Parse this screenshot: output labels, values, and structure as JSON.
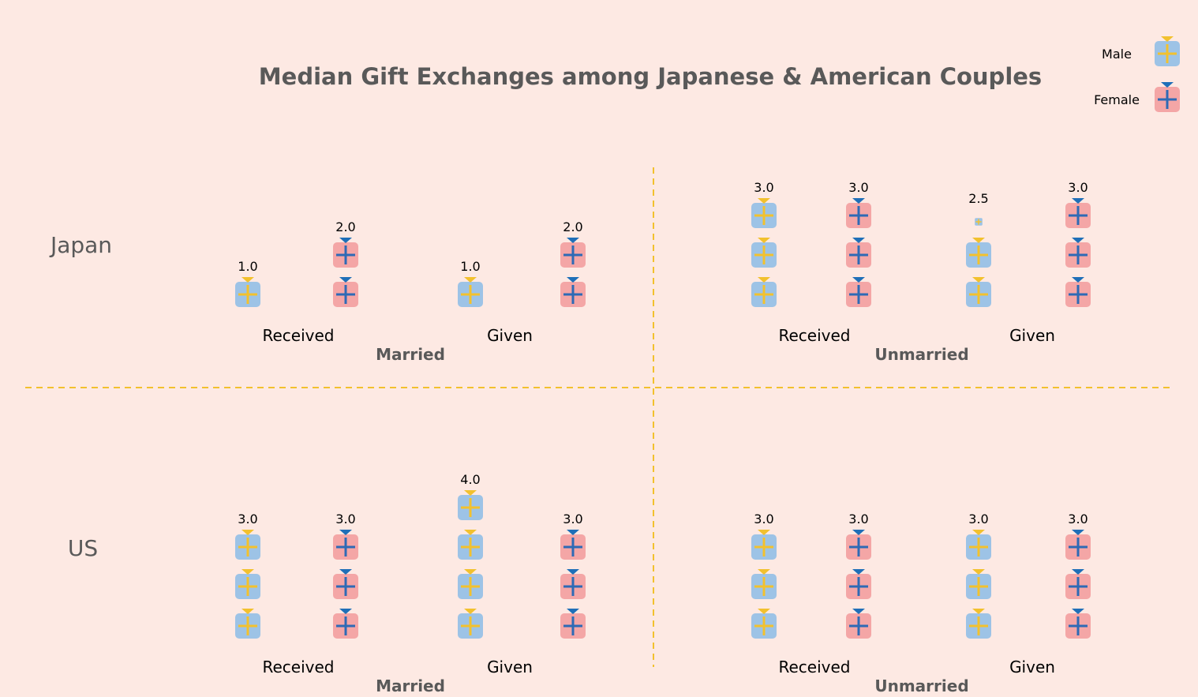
{
  "chart_data": {
    "type": "pictograph",
    "title": "Median Gift Exchanges among Japanese & American Couples",
    "legend": [
      {
        "name": "Male",
        "fill": "#9dc3e6",
        "cross": "#f2c12e",
        "bow": "#f2c12e",
        "icon": "gift-icon"
      },
      {
        "name": "Female",
        "fill": "#f4a6a6",
        "cross": "#2e6ab5",
        "bow": "#1f6fb8",
        "icon": "gift-icon"
      }
    ],
    "rows": [
      "Japan",
      "US"
    ],
    "groups": [
      "Married",
      "Unmarried"
    ],
    "subgroups": [
      "Received",
      "Given"
    ],
    "panels": [
      {
        "country": "Japan",
        "group": "Married",
        "sub_labels": [
          "Received",
          "Given"
        ],
        "values": [
          {
            "subgroup": "Received",
            "Male": 1.0,
            "Female": 2.0
          },
          {
            "subgroup": "Given",
            "Male": 1.0,
            "Female": 2.0
          }
        ]
      },
      {
        "country": "Japan",
        "group": "Unmarried",
        "sub_labels": [
          "Received",
          "Given"
        ],
        "values": [
          {
            "subgroup": "Received",
            "Male": 3.0,
            "Female": 3.0
          },
          {
            "subgroup": "Given",
            "Male": 2.5,
            "Female": 3.0
          }
        ]
      },
      {
        "country": "US",
        "group": "Married",
        "sub_labels": [
          "Received",
          "Given"
        ],
        "values": [
          {
            "subgroup": "Received",
            "Male": 3.0,
            "Female": 3.0
          },
          {
            "subgroup": "Given",
            "Male": 4.0,
            "Female": 3.0
          }
        ]
      },
      {
        "country": "US",
        "group": "Unmarried",
        "sub_labels": [
          "Received",
          "Given"
        ],
        "values": [
          {
            "subgroup": "Received",
            "Male": 3.0,
            "Female": 3.0
          },
          {
            "subgroup": "Given",
            "Male": 3.0,
            "Female": 3.0
          }
        ]
      }
    ],
    "grid": false,
    "legend_position": "top-right"
  }
}
